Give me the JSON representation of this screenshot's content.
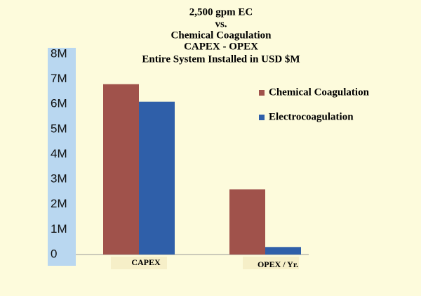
{
  "chart_data": {
    "type": "bar",
    "title": [
      "2,500 gpm EC",
      "vs.",
      "Chemical Coagulation",
      "CAPEX - OPEX",
      "Entire System Installed in USD $M"
    ],
    "categories": [
      "CAPEX",
      "OPEX / Yr."
    ],
    "series": [
      {
        "name": "Chemical Coagulation",
        "color": "#a0524b",
        "values": [
          6.8,
          2.6
        ]
      },
      {
        "name": "Electrocoagulation",
        "color": "#2f5fa9",
        "values": [
          6.1,
          0.3
        ]
      }
    ],
    "ylim": [
      0,
      8
    ],
    "yticks": [
      {
        "value": 0,
        "label": "0"
      },
      {
        "value": 1,
        "label": "1M"
      },
      {
        "value": 2,
        "label": "2M"
      },
      {
        "value": 3,
        "label": "3M"
      },
      {
        "value": 4,
        "label": "4M"
      },
      {
        "value": 5,
        "label": "5M"
      },
      {
        "value": 6,
        "label": "6M"
      },
      {
        "value": 7,
        "label": "7M"
      },
      {
        "value": 8,
        "label": "8M"
      }
    ],
    "legend": "right"
  }
}
